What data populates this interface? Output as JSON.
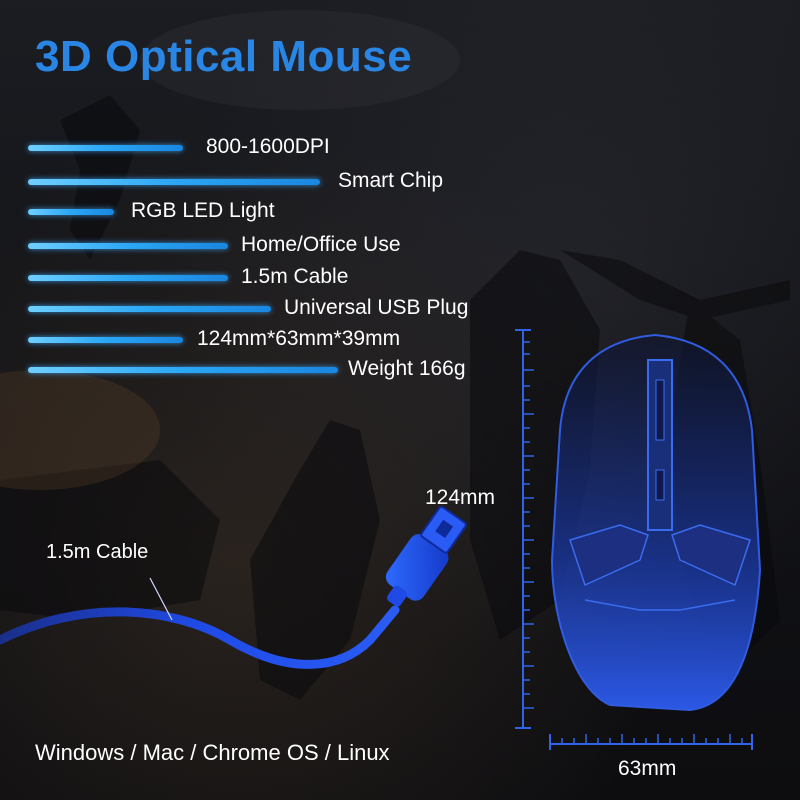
{
  "title": "3D Optical Mouse",
  "features": [
    {
      "label": "800-1600DPI"
    },
    {
      "label": "Smart Chip"
    },
    {
      "label": "RGB LED Light"
    },
    {
      "label": "Home/Office Use"
    },
    {
      "label": "1.5m Cable"
    },
    {
      "label": "Universal USB Plug"
    },
    {
      "label": "124mm*63mm*39mm"
    },
    {
      "label": "Weight 166g"
    }
  ],
  "cable_label": "1.5m Cable",
  "os_support": "Windows / Mac / Chrome OS / Linux",
  "dimensions": {
    "height": "124mm",
    "width": "63mm"
  },
  "colors": {
    "accent": "#2a86e4",
    "bar": "#2aa7f5",
    "mouse": "#1e3fb0",
    "cable": "#1740d8"
  }
}
